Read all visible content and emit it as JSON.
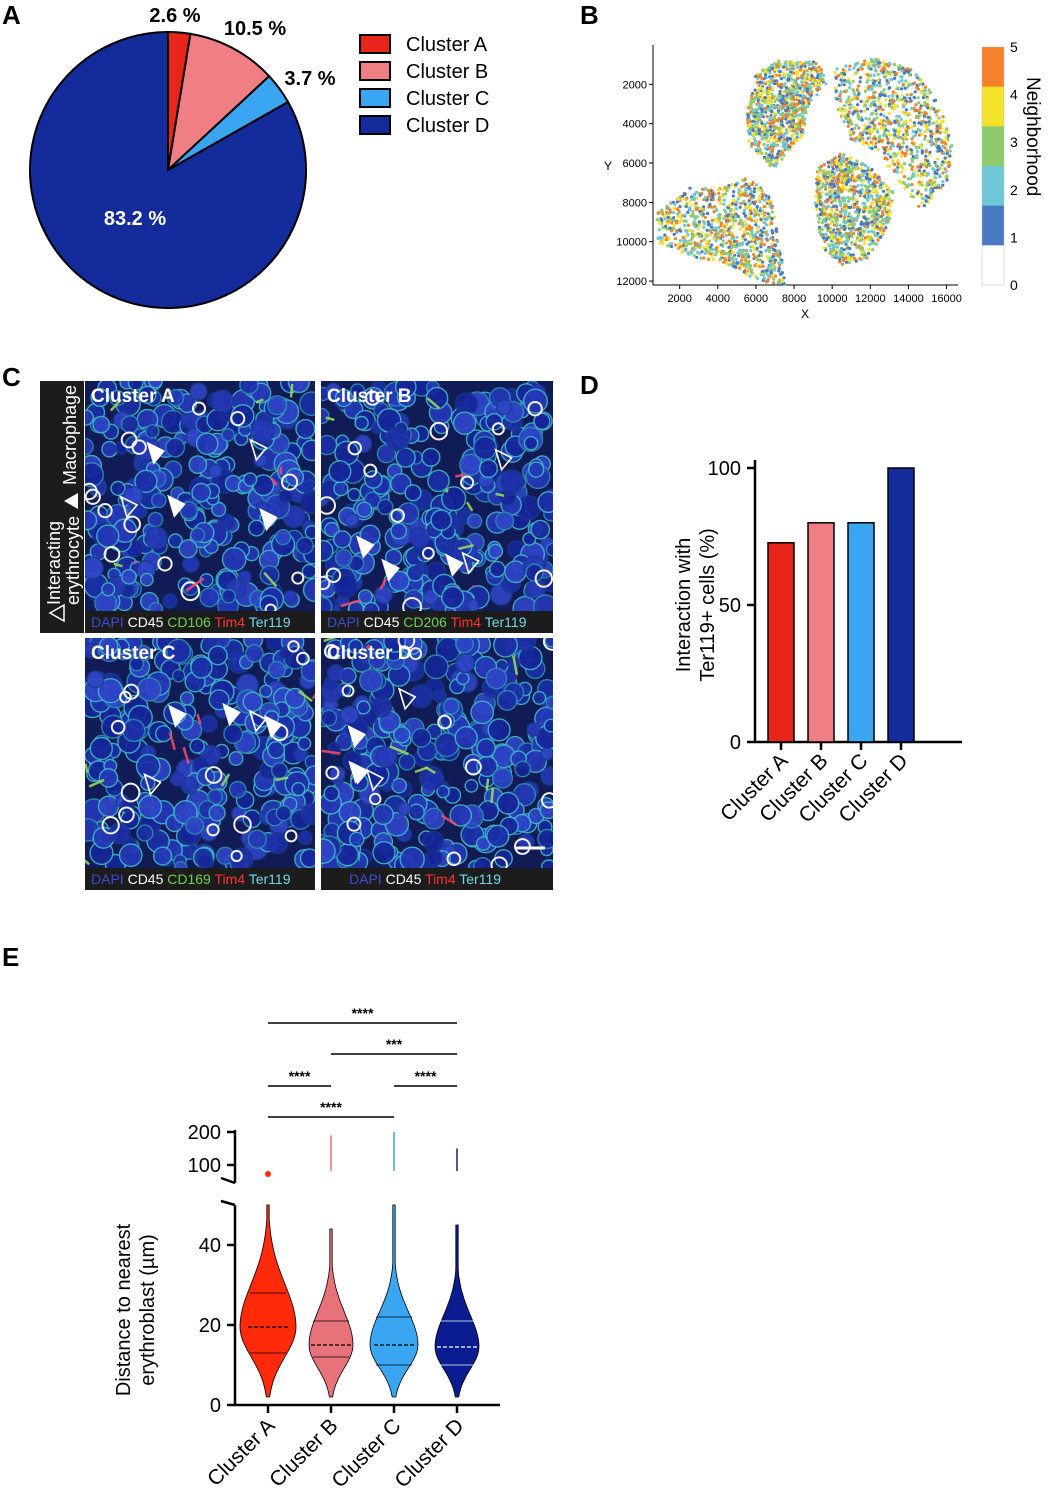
{
  "panels": {
    "a": "A",
    "b": "B",
    "c": "C",
    "d": "D",
    "e": "E"
  },
  "colors": {
    "cluster_a": "#e8251a",
    "cluster_b": "#ef7f85",
    "cluster_c": "#3aa6f2",
    "cluster_d": "#142b9c",
    "violin_a": "#ff2a0a",
    "violin_b": "#e8727a",
    "violin_c": "#3aa6f2",
    "violin_d": "#0a1c8f"
  },
  "chart_data": [
    {
      "type": "pie",
      "slices": [
        {
          "label": "Cluster A",
          "value": 2.6,
          "text": "2.6 %"
        },
        {
          "label": "Cluster B",
          "value": 10.5,
          "text": "10.5 %"
        },
        {
          "label": "Cluster C",
          "value": 3.7,
          "text": "3.7 %"
        },
        {
          "label": "Cluster D",
          "value": 83.2,
          "text": "83.2 %"
        }
      ],
      "legend": [
        "Cluster A",
        "Cluster B",
        "Cluster C",
        "Cluster D"
      ],
      "legend_position": "right"
    },
    {
      "type": "scatter",
      "xlabel": "X",
      "ylabel": "Y",
      "xticks": [
        "2000",
        "4000",
        "6000",
        "8000",
        "10000",
        "12000",
        "14000",
        "16000"
      ],
      "yticks": [
        "2000",
        "4000",
        "6000",
        "8000",
        "10000",
        "12000"
      ],
      "xlim": [
        600,
        16600
      ],
      "ylim": [
        12200,
        0
      ],
      "colorbar_label": "Neighborhood",
      "colorbar_ticks": [
        "5",
        "4",
        "3",
        "2",
        "1",
        "0"
      ],
      "colorbar_colors": [
        "#f5822a",
        "#f5e22a",
        "#8fcb6a",
        "#6ec8d8",
        "#4a79c4",
        "#ffffff"
      ]
    },
    {
      "type": "bar",
      "categories": [
        "Cluster A",
        "Cluster B",
        "Cluster C",
        "Cluster D"
      ],
      "values": [
        72.7,
        80,
        80,
        100
      ],
      "ylabel_lines": [
        "Interaction with",
        "Ter119+ cells (%)"
      ],
      "ylim": [
        0,
        100
      ],
      "yticks": [
        "0",
        "50",
        "100"
      ]
    },
    {
      "type": "violin",
      "categories": [
        "Cluster A",
        "Cluster B",
        "Cluster C",
        "Cluster D"
      ],
      "ylabel_lines": [
        "Distance to nearest",
        "erythroblast (µm)"
      ],
      "yticks_lower": [
        "0",
        "20",
        "40"
      ],
      "yticks_upper": [
        "100",
        "200"
      ],
      "medians": [
        19.5,
        15,
        15,
        14.5
      ],
      "quartiles": [
        [
          13,
          28
        ],
        [
          12,
          21
        ],
        [
          10,
          22
        ],
        [
          10,
          21
        ]
      ],
      "max_lower": [
        50,
        44,
        50,
        45
      ],
      "max_upper": [
        null,
        190,
        200,
        150
      ],
      "significance": [
        {
          "from": "Cluster A",
          "to": "Cluster D",
          "label": "****"
        },
        {
          "from": "Cluster B",
          "to": "Cluster D",
          "label": "***"
        },
        {
          "from": "Cluster A",
          "to": "Cluster B",
          "label": "****"
        },
        {
          "from": "Cluster C",
          "to": "Cluster D",
          "label": "****"
        },
        {
          "from": "Cluster A",
          "to": "Cluster C",
          "label": "****"
        }
      ]
    }
  ],
  "micrographs": {
    "side_label": {
      "line1": "Interacting",
      "line2": "erythrocyte",
      "macrophage": "Macrophage"
    },
    "tiles": [
      {
        "title": "Cluster A",
        "caption": [
          {
            "t": "DAPI",
            "c": "#3b4bd6"
          },
          {
            "t": " CD45",
            "c": "#ffffff"
          },
          {
            "t": " CD106",
            "c": "#6cd24a"
          },
          {
            "t": " Tim4",
            "c": "#ff3030"
          },
          {
            "t": " Ter119",
            "c": "#6cd8e8"
          }
        ]
      },
      {
        "title": "Cluster B",
        "caption": [
          {
            "t": "DAPI",
            "c": "#3b4bd6"
          },
          {
            "t": " CD45",
            "c": "#ffffff"
          },
          {
            "t": " CD206",
            "c": "#6cd24a"
          },
          {
            "t": " Tim4",
            "c": "#ff3030"
          },
          {
            "t": " Ter119",
            "c": "#6cd8e8"
          }
        ]
      },
      {
        "title": "Cluster C",
        "caption": [
          {
            "t": "DAPI",
            "c": "#3b4bd6"
          },
          {
            "t": " CD45",
            "c": "#ffffff"
          },
          {
            "t": " CD169",
            "c": "#6cd24a"
          },
          {
            "t": " Tim4",
            "c": "#ff3030"
          },
          {
            "t": " Ter119",
            "c": "#6cd8e8"
          }
        ]
      },
      {
        "title": "Cluster D",
        "caption": [
          {
            "t": "DAPI",
            "c": "#3b4bd6"
          },
          {
            "t": " CD45",
            "c": "#ffffff"
          },
          {
            "t": " Tim4",
            "c": "#ff3030"
          },
          {
            "t": " Ter119",
            "c": "#6cd8e8"
          }
        ]
      }
    ]
  }
}
